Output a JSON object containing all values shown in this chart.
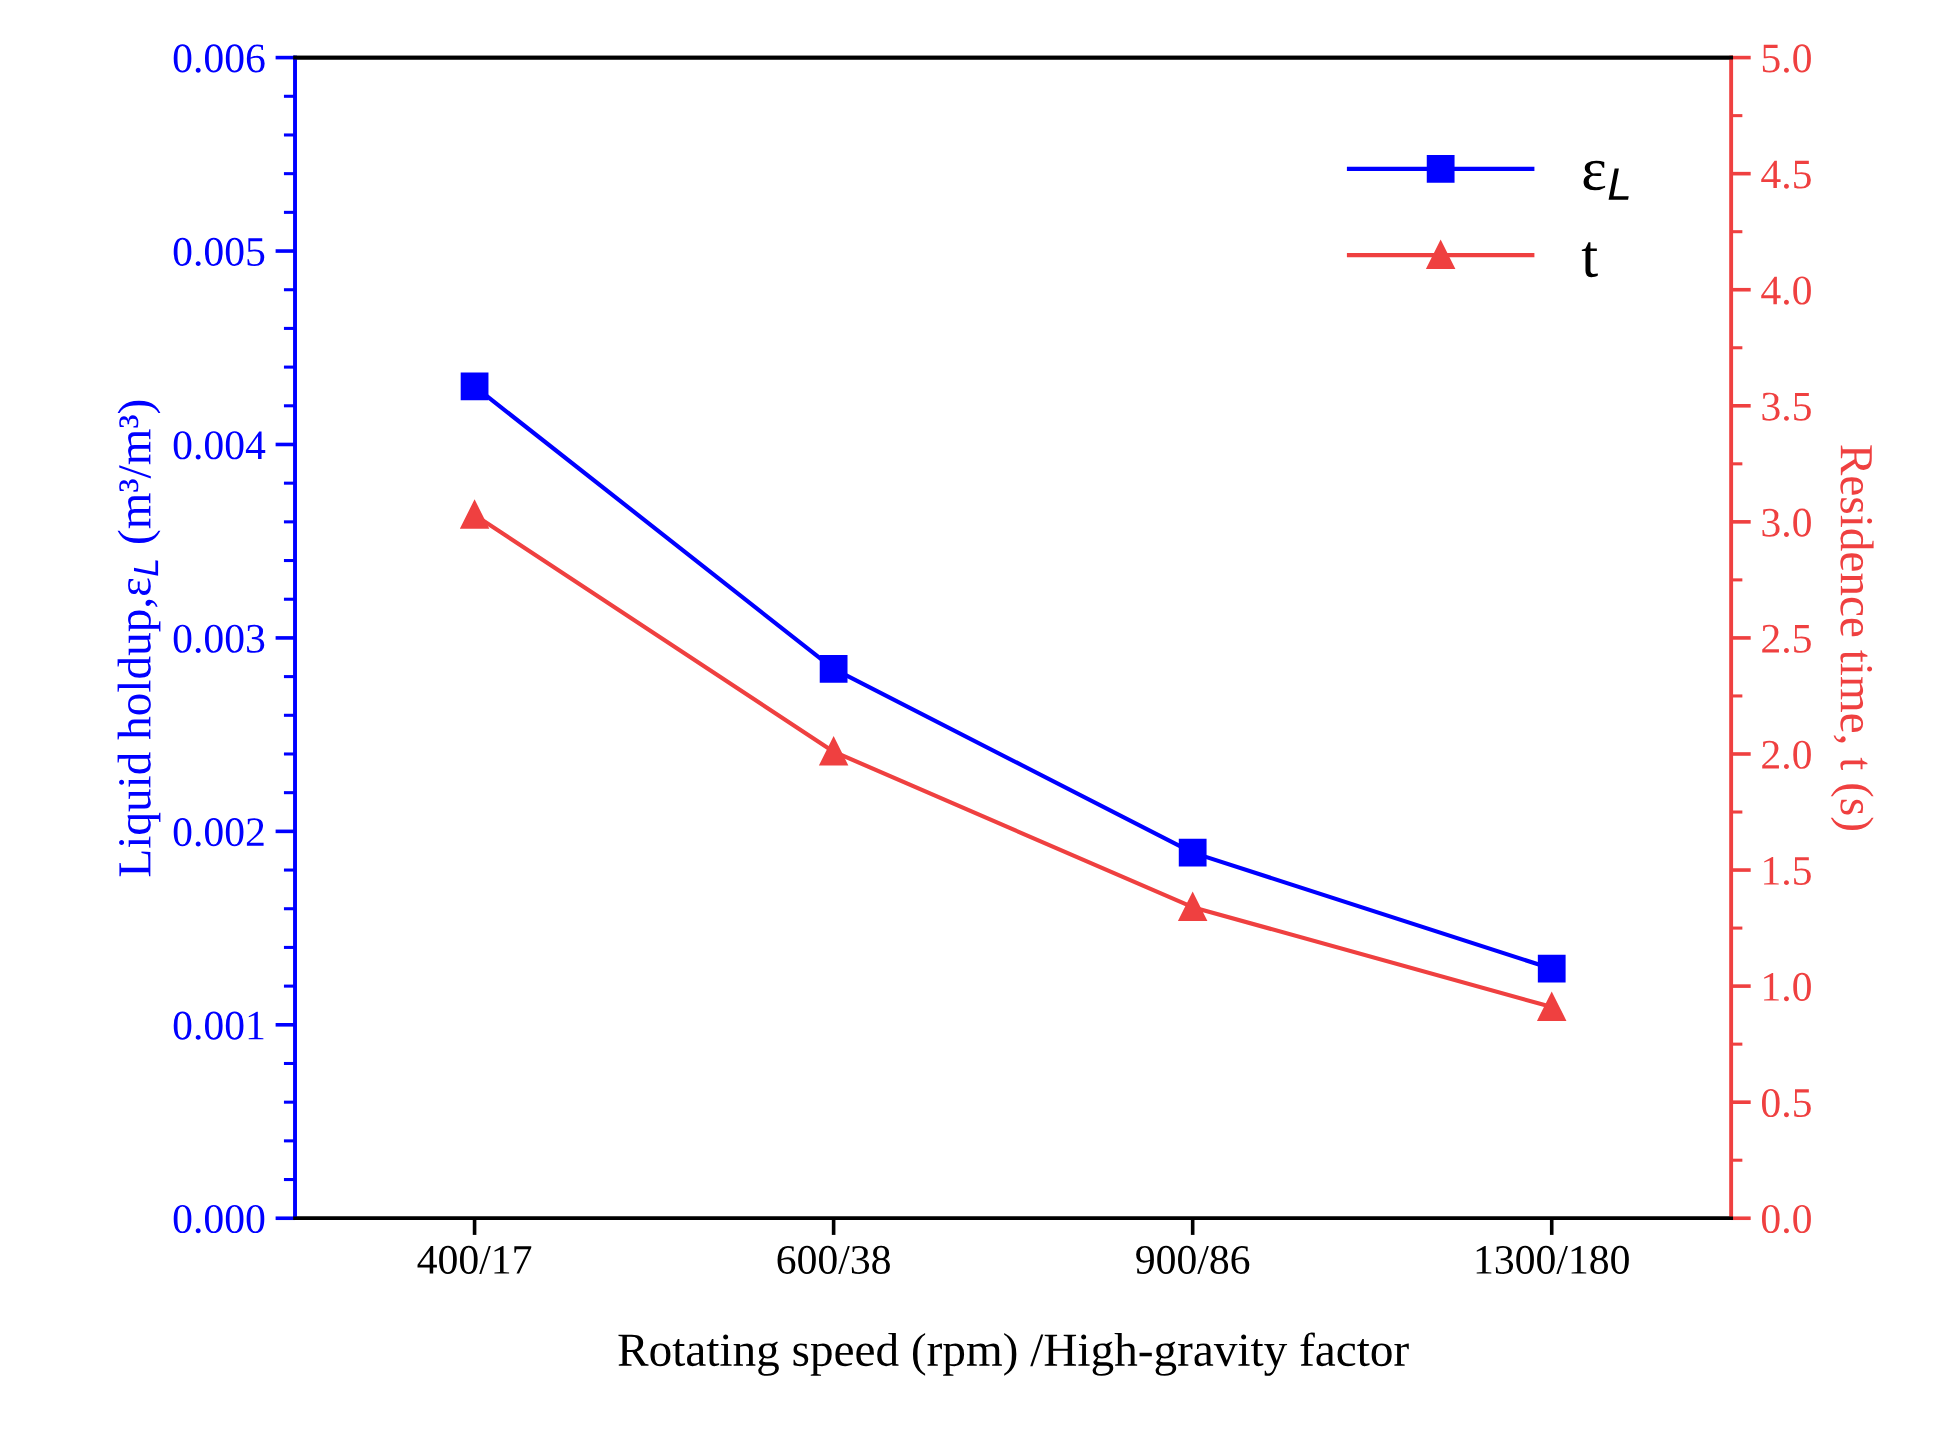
{
  "chart_data": {
    "type": "line",
    "xlabel": "Rotating speed (rpm) /High-gravity factor",
    "ylabel": "Liquid holdup,ε$_{L}$ (m³/m³)",
    "y2label": "Residence time, t (s)",
    "categories": [
      "400/17",
      "600/38",
      "900/86",
      "1300/180"
    ],
    "series": [
      {
        "name": "ε$_{L}$",
        "color": "#0000ff",
        "values": [
          0.0043,
          0.00284,
          0.00189,
          0.00129
        ],
        "marker": "square"
      },
      {
        "name": "t",
        "color": "#ef4040",
        "values": [
          3.03,
          2.01,
          1.34,
          0.91
        ],
        "marker": "triangle",
        "axis": "y2"
      }
    ],
    "ylim": [
      0,
      0.006
    ],
    "yticks": [
      {
        "value": 0,
        "label": "0.000"
      },
      {
        "value": 0.001,
        "label": "0.001"
      },
      {
        "value": 0.002,
        "label": "0.002"
      },
      {
        "value": 0.003,
        "label": "0.003"
      },
      {
        "value": 0.004,
        "label": "0.004"
      },
      {
        "value": 0.005,
        "label": "0.005"
      },
      {
        "value": 0.006,
        "label": "0.006"
      }
    ],
    "y2lim": [
      0,
      5
    ],
    "y2ticks": [
      {
        "value": 0,
        "label": "0.0"
      },
      {
        "value": 0.5,
        "label": "0.5"
      },
      {
        "value": 1,
        "label": "1.0"
      },
      {
        "value": 1.5,
        "label": "1.5"
      },
      {
        "value": 2,
        "label": "2.0"
      },
      {
        "value": 2.5,
        "label": "2.5"
      },
      {
        "value": 3,
        "label": "3.0"
      },
      {
        "value": 3.5,
        "label": "3.5"
      },
      {
        "value": 4,
        "label": "4.0"
      },
      {
        "value": 4.5,
        "label": "4.5"
      },
      {
        "value": 5,
        "label": "5.0"
      }
    ],
    "legend": "top right",
    "grid": false,
    "line_style": "solid"
  }
}
